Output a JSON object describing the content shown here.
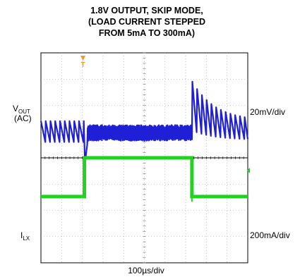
{
  "chart_data": {
    "type": "line",
    "title": [
      "1.8V OUTPUT, SKIP MODE,",
      "(LOAD CURRENT STEPPED",
      "FROM 5mA TO 300mA)"
    ],
    "xlabel": "100µs/div",
    "channels": [
      {
        "name": "VOUT",
        "label_main": "V",
        "label_sub": "OUT",
        "label_line2": "(AC)",
        "scale": "20mV/div",
        "color": "#1f1fd6",
        "unit": "mV",
        "offset_div": 1.0
      },
      {
        "name": "ILX",
        "label_main": "I",
        "label_sub": "LX",
        "scale": "200mA/div",
        "color": "#1fd31f",
        "unit": "mA",
        "offset_div": -1.5
      }
    ],
    "x_range_us": [
      0,
      1000
    ],
    "y_range_div": [
      -4,
      4
    ],
    "grid": true,
    "load_step": {
      "low_mA": 5,
      "high_mA": 300,
      "step_up_us": 210,
      "step_down_us": 730
    },
    "vout_events": {
      "ripple_light_load_mVpp": 16,
      "undershoot_mV": -25,
      "overshoot_mV": 34,
      "ripple_heavy_load_mVpp": 12
    },
    "trigger_marker": "T"
  }
}
